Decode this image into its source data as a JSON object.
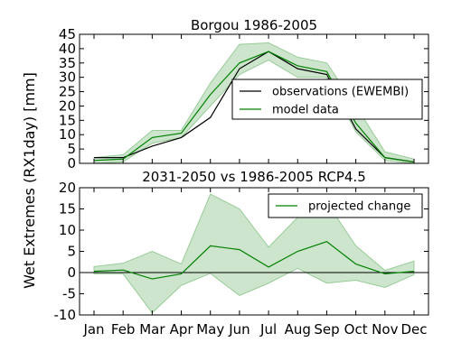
{
  "shared_ylabel": "Wet Extremes (RX1day) [mm]",
  "chart_data": [
    {
      "type": "line",
      "title": "Borgou 1986-2005",
      "categories": [
        "Jan",
        "Feb",
        "Mar",
        "Apr",
        "May",
        "Jun",
        "Jul",
        "Aug",
        "Sep",
        "Oct",
        "Nov",
        "Dec"
      ],
      "ylim": [
        0,
        45
      ],
      "yticks": [
        0,
        5,
        10,
        15,
        20,
        25,
        30,
        35,
        40,
        45
      ],
      "grid": false,
      "legend_position": "center-right",
      "series": [
        {
          "name": "observations (EWEMBI)",
          "color": "#000000",
          "values": [
            2,
            2,
            6,
            9,
            16,
            33,
            39,
            33,
            31,
            12,
            2,
            0.5
          ]
        },
        {
          "name": "model data",
          "color": "#008000",
          "values": [
            1,
            1.5,
            9,
            10.5,
            24,
            35,
            39,
            34,
            32,
            14,
            2,
            0.5
          ]
        }
      ],
      "band": {
        "series": "model data",
        "color": "#99cc99",
        "lower": [
          0,
          0.5,
          7,
          9,
          20,
          31,
          36,
          30,
          30,
          11,
          1,
          0
        ],
        "upper": [
          2,
          3,
          11.5,
          11.5,
          28,
          41.5,
          42,
          37,
          35,
          20,
          4,
          1.5
        ]
      }
    },
    {
      "type": "line",
      "title": "2031-2050 vs 1986-2005 RCP4.5",
      "categories": [
        "Jan",
        "Feb",
        "Mar",
        "Apr",
        "May",
        "Jun",
        "Jul",
        "Aug",
        "Sep",
        "Oct",
        "Nov",
        "Dec"
      ],
      "ylim": [
        -10,
        20
      ],
      "yticks": [
        -10,
        -5,
        0,
        5,
        10,
        15,
        20
      ],
      "grid": false,
      "legend_position": "upper-right",
      "zero_line": true,
      "series": [
        {
          "name": "projected change",
          "color": "#008000",
          "values": [
            0.3,
            0.6,
            -1.5,
            -0.3,
            6.3,
            5.4,
            1.3,
            5,
            7.3,
            2,
            -0.3,
            0.3
          ]
        }
      ],
      "band": {
        "series": "projected change",
        "color": "#99cc99",
        "lower": [
          -0.3,
          -0.3,
          -9.5,
          -3,
          -0.2,
          -5.4,
          -2.5,
          1,
          -2.5,
          -1.8,
          -3.5,
          -0.5
        ],
        "upper": [
          1.4,
          2.2,
          5,
          2,
          18.5,
          15,
          6,
          13,
          16.5,
          6.3,
          0.5,
          2.7
        ]
      }
    }
  ]
}
